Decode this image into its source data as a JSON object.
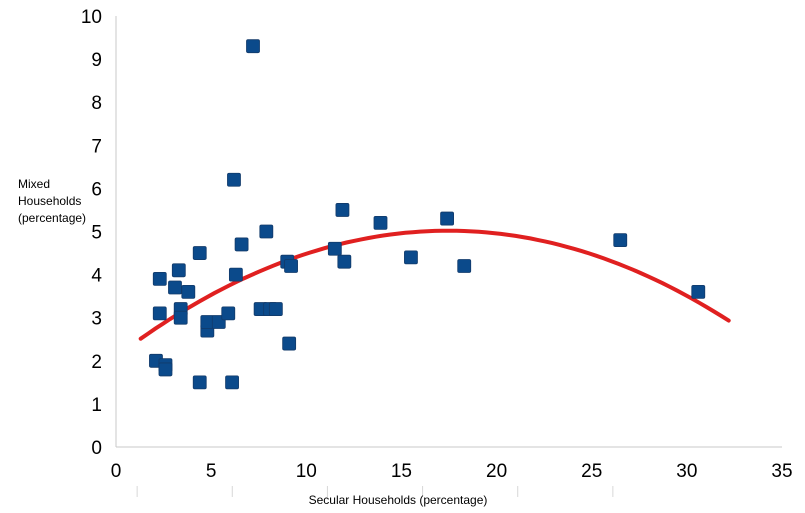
{
  "chart_data": {
    "type": "scatter",
    "xlabel": "Secular Households (percentage)",
    "ylabel": [
      "Mixed",
      "Households",
      "(percentage)"
    ],
    "xlim": [
      0,
      35
    ],
    "ylim": [
      0,
      10
    ],
    "x_ticks": [
      "0",
      "5",
      "10",
      "15",
      "20",
      "25",
      "30",
      "35"
    ],
    "y_ticks": [
      "0",
      "1",
      "2",
      "3",
      "4",
      "5",
      "6",
      "7",
      "8",
      "9",
      "10"
    ],
    "grid": false,
    "legend": "none",
    "series": [
      {
        "marker": "square",
        "color": "#0b4a8b",
        "points": [
          {
            "x": 2.1,
            "y": 2.0
          },
          {
            "x": 2.6,
            "y": 1.9
          },
          {
            "x": 2.6,
            "y": 1.8
          },
          {
            "x": 2.3,
            "y": 3.1
          },
          {
            "x": 2.3,
            "y": 3.9
          },
          {
            "x": 3.1,
            "y": 3.7
          },
          {
            "x": 3.3,
            "y": 4.1
          },
          {
            "x": 3.4,
            "y": 3.2
          },
          {
            "x": 3.4,
            "y": 3.0
          },
          {
            "x": 3.8,
            "y": 3.6
          },
          {
            "x": 4.4,
            "y": 4.5
          },
          {
            "x": 4.4,
            "y": 1.5
          },
          {
            "x": 4.8,
            "y": 2.7
          },
          {
            "x": 4.8,
            "y": 2.9
          },
          {
            "x": 5.4,
            "y": 2.9
          },
          {
            "x": 5.9,
            "y": 3.1
          },
          {
            "x": 6.1,
            "y": 1.5
          },
          {
            "x": 6.3,
            "y": 4.0
          },
          {
            "x": 6.2,
            "y": 6.2
          },
          {
            "x": 6.6,
            "y": 4.7
          },
          {
            "x": 7.2,
            "y": 9.3
          },
          {
            "x": 7.6,
            "y": 3.2
          },
          {
            "x": 7.9,
            "y": 5.0
          },
          {
            "x": 8.1,
            "y": 3.2
          },
          {
            "x": 8.4,
            "y": 3.2
          },
          {
            "x": 9.0,
            "y": 4.3
          },
          {
            "x": 9.1,
            "y": 2.4
          },
          {
            "x": 9.2,
            "y": 4.2
          },
          {
            "x": 11.5,
            "y": 4.6
          },
          {
            "x": 11.9,
            "y": 5.5
          },
          {
            "x": 12.0,
            "y": 4.3
          },
          {
            "x": 13.9,
            "y": 5.2
          },
          {
            "x": 15.5,
            "y": 4.4
          },
          {
            "x": 17.4,
            "y": 5.3
          },
          {
            "x": 18.3,
            "y": 4.2
          },
          {
            "x": 26.5,
            "y": 4.8
          },
          {
            "x": 30.6,
            "y": 3.6
          }
        ]
      }
    ],
    "trendline": {
      "type": "quadratic",
      "color": "#e02020",
      "x_range": [
        1.3,
        32.2
      ],
      "points": [
        {
          "x": 1.3,
          "y": 2.55
        },
        {
          "x": 5,
          "y": 3.5
        },
        {
          "x": 10,
          "y": 4.42
        },
        {
          "x": 15,
          "y": 4.97
        },
        {
          "x": 17.5,
          "y": 5.06
        },
        {
          "x": 20,
          "y": 5.0
        },
        {
          "x": 25,
          "y": 4.45
        },
        {
          "x": 30,
          "y": 3.45
        },
        {
          "x": 32.2,
          "y": 2.97
        }
      ]
    }
  }
}
